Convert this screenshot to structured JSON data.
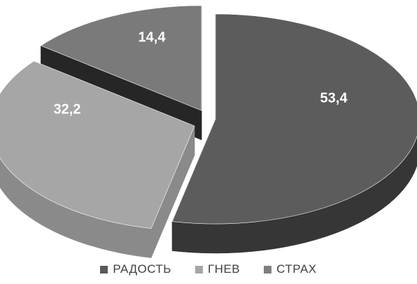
{
  "chart_data": {
    "type": "pie",
    "style": "3d-exploded",
    "title": "",
    "legend_position": "bottom",
    "categories": [
      "РАДОСТЬ",
      "ГНЕВ",
      "СТРАХ"
    ],
    "values": [
      53.4,
      32.2,
      14.4
    ],
    "data_labels": [
      "53,4",
      "32,2",
      "14,4"
    ],
    "colors": {
      "РАДОСТЬ": {
        "top": "#5c5c5c",
        "side": "#363636",
        "swatch": "#595959"
      },
      "ГНЕВ": {
        "top": "#a6a6a6",
        "side": "#8a8a8a",
        "swatch": "#a6a6a6"
      },
      "СТРАХ": {
        "top": "#7a7a7a",
        "side": "#262626",
        "swatch": "#7f7f7f"
      }
    }
  }
}
